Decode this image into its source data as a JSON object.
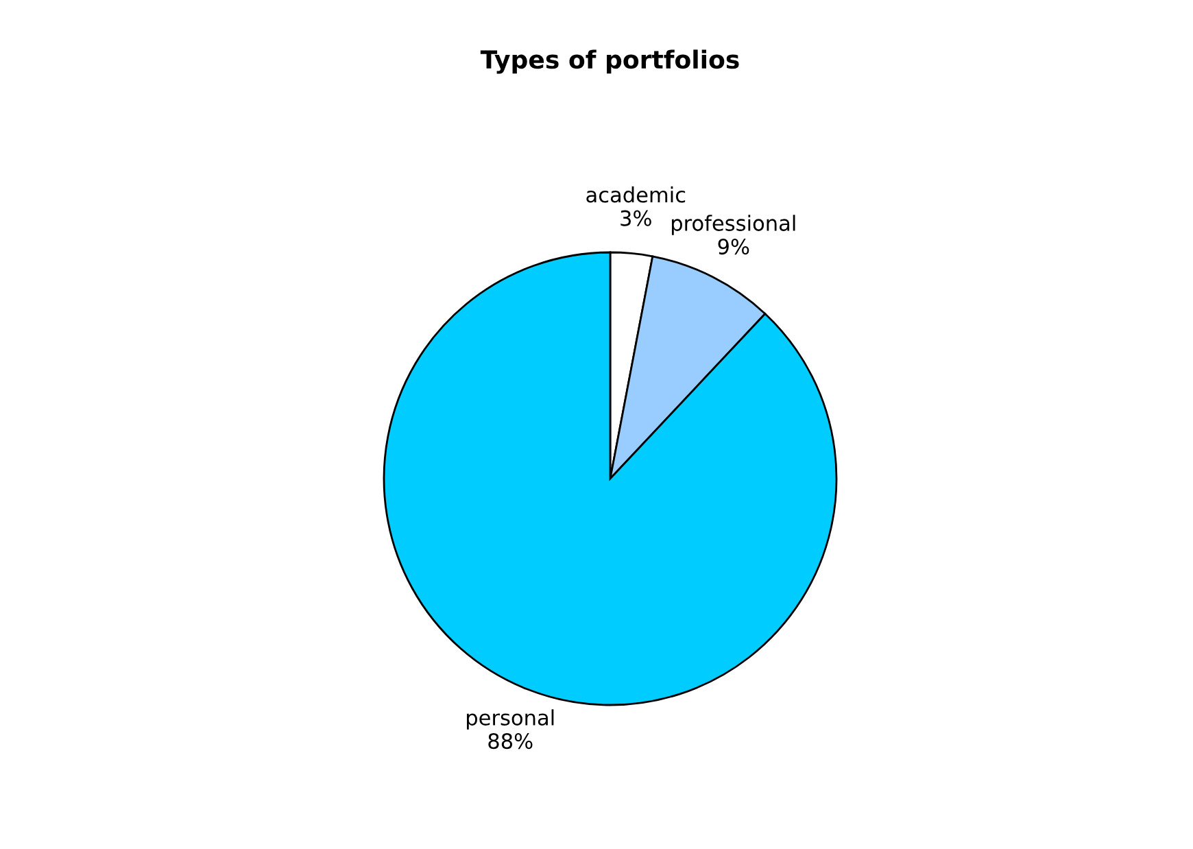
{
  "chart_data": {
    "type": "pie",
    "title": "Types of portfolios",
    "categories": [
      "academic",
      "professional",
      "personal"
    ],
    "values": [
      3,
      9,
      88
    ],
    "value_labels": [
      "3%",
      "9%",
      "88%"
    ],
    "colors": [
      "#ffffff",
      "#99ccff",
      "#00ccff"
    ],
    "legend": false
  }
}
